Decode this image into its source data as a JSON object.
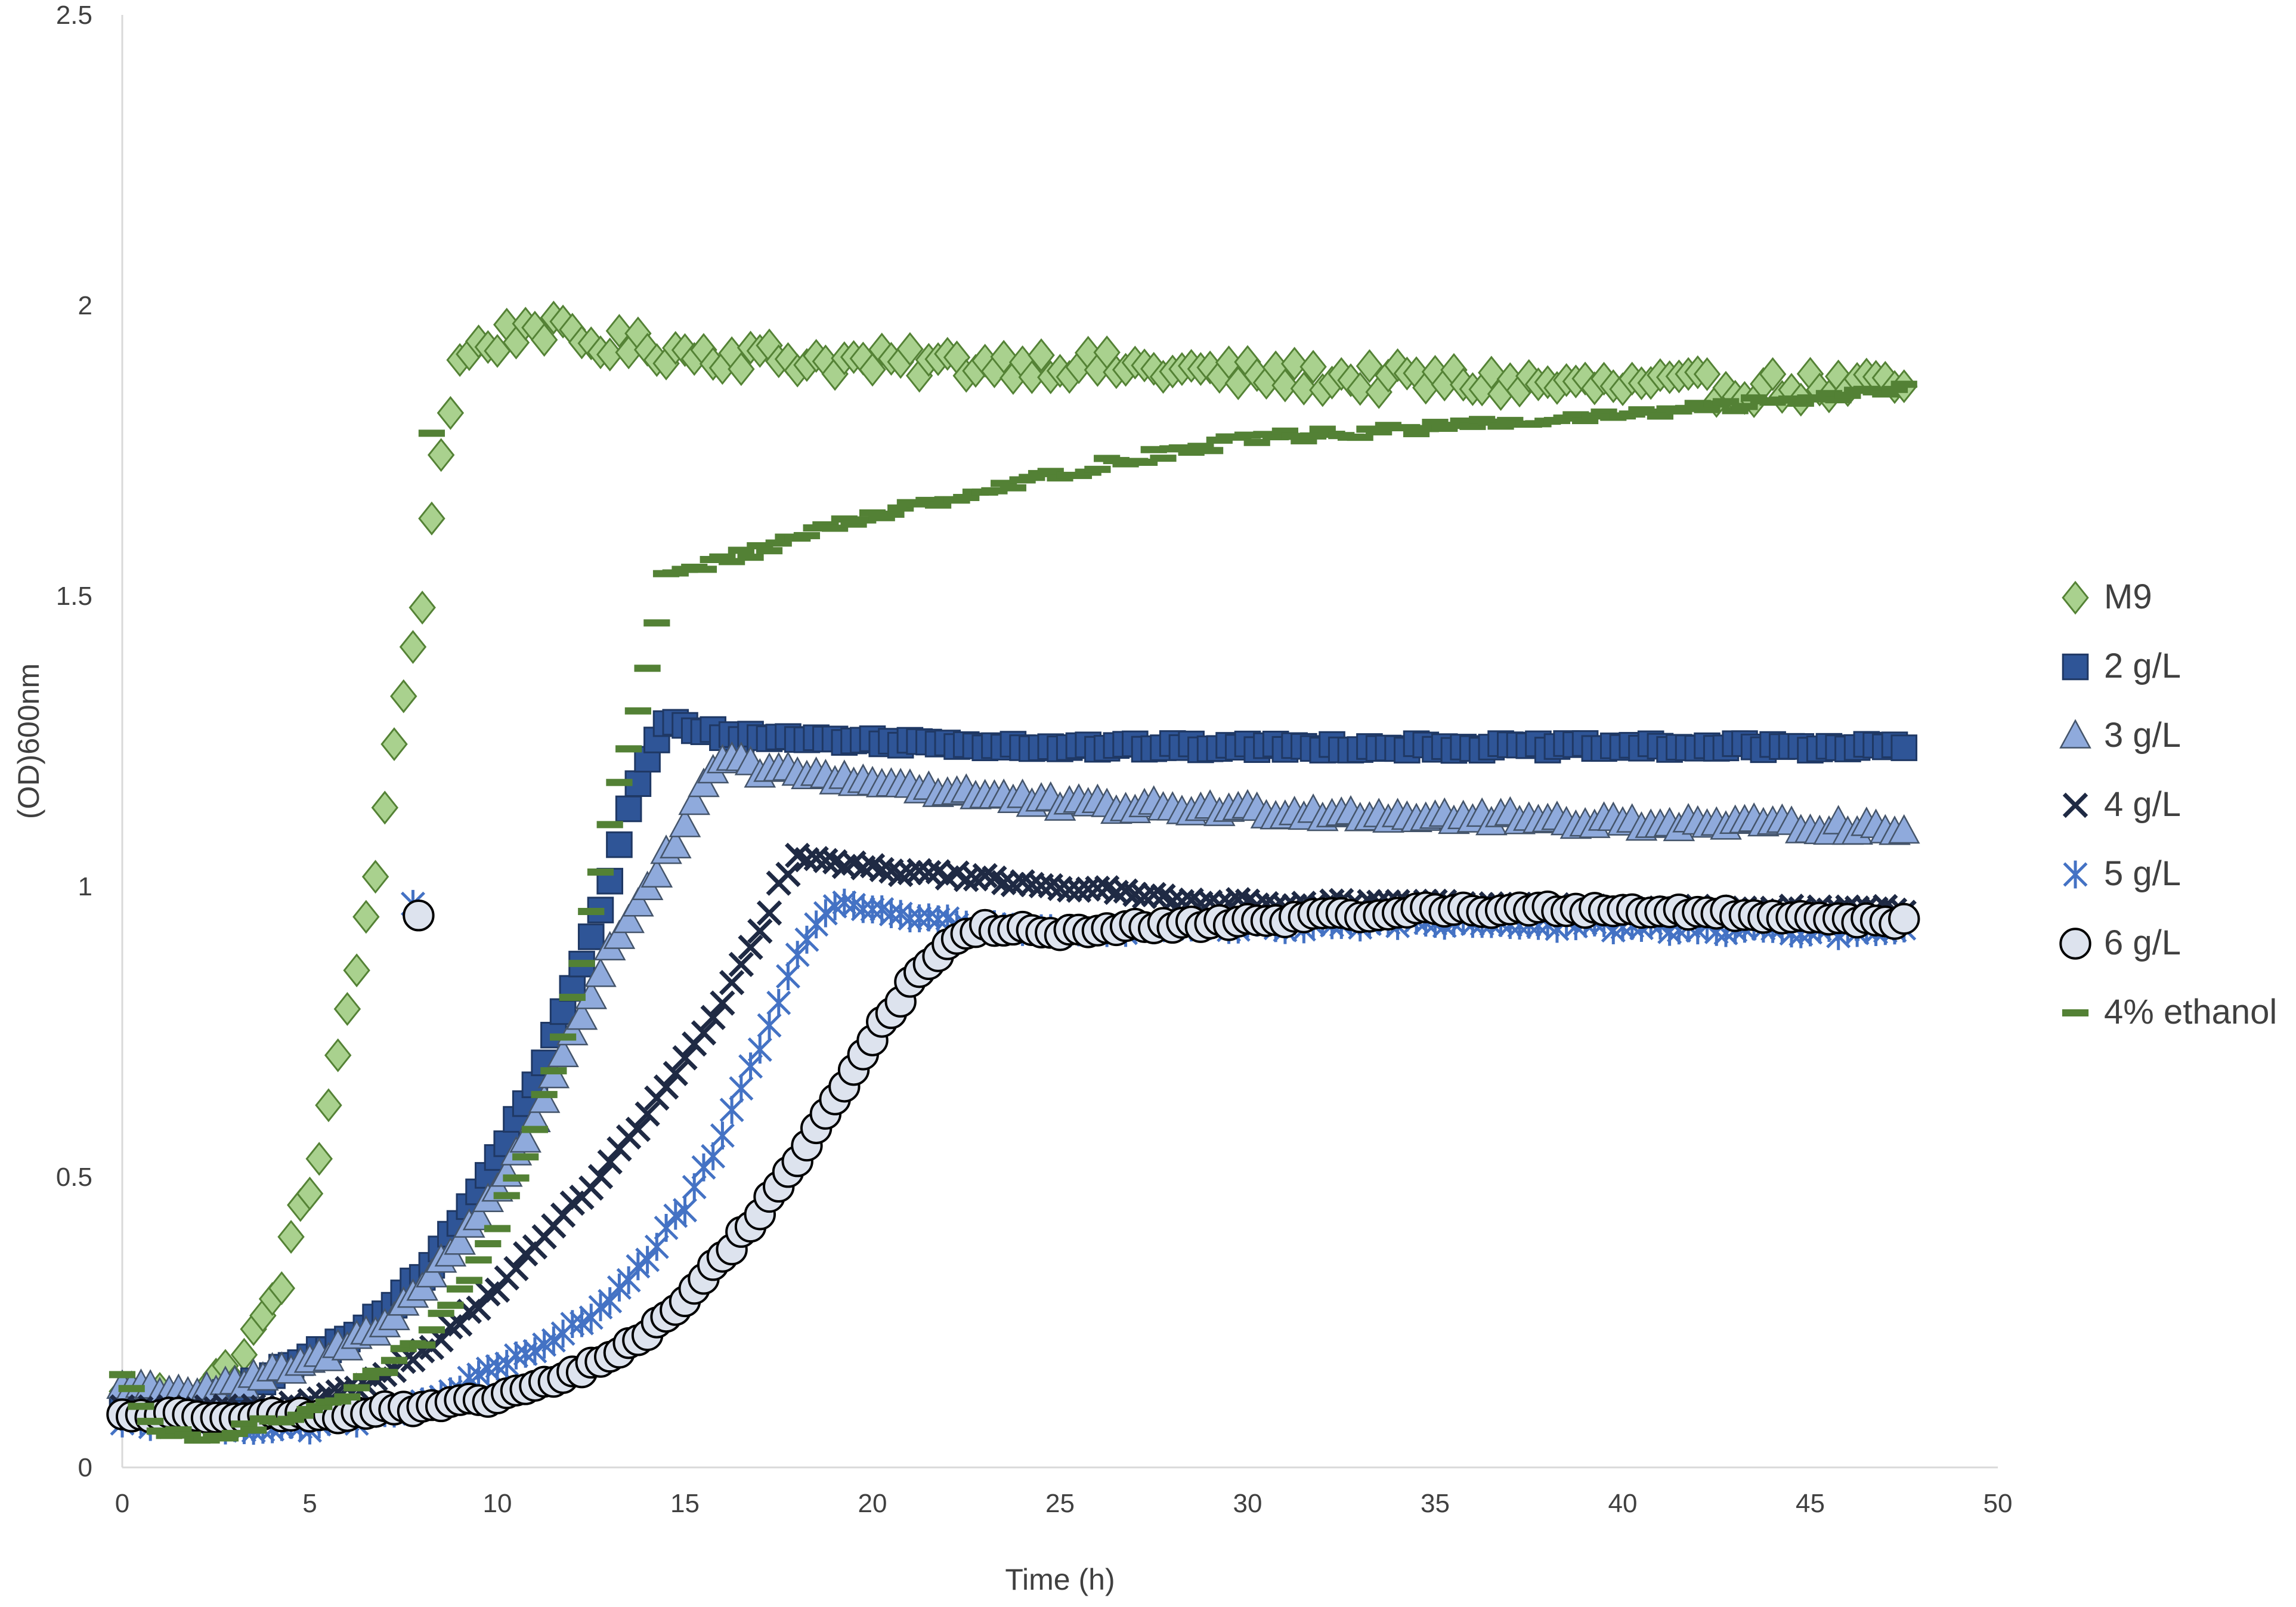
{
  "chart_data": {
    "type": "scatter",
    "title": "",
    "xlabel": "Time (h)",
    "ylabel": "(OD)600nm",
    "xlim": [
      0,
      50
    ],
    "ylim": [
      0,
      2.5
    ],
    "x_ticks": [
      "0",
      "5",
      "10",
      "15",
      "20",
      "25",
      "30",
      "35",
      "40",
      "45",
      "50"
    ],
    "y_ticks": [
      "0",
      "0.5",
      "1",
      "1.5",
      "2",
      "2.5"
    ],
    "grid": false,
    "legend_position": "right",
    "sample_interval_h": 0.25,
    "x_end": 47.5,
    "series": [
      {
        "name": "M9",
        "marker": "diamond",
        "color": "#a9d18e",
        "edge_color": "#548235",
        "keypoints": [
          [
            0,
            0.12
          ],
          [
            1,
            0.12
          ],
          [
            2,
            0.13
          ],
          [
            3,
            0.17
          ],
          [
            4,
            0.28
          ],
          [
            5,
            0.48
          ],
          [
            6,
            0.77
          ],
          [
            7,
            1.12
          ],
          [
            7.5,
            1.33
          ],
          [
            8,
            1.5
          ],
          [
            8.5,
            1.75
          ],
          [
            9,
            1.9
          ],
          [
            9.5,
            1.93
          ],
          [
            10,
            1.94
          ],
          [
            11,
            1.97
          ],
          [
            12,
            1.94
          ],
          [
            15,
            1.92
          ],
          [
            20,
            1.9
          ],
          [
            25,
            1.9
          ],
          [
            30,
            1.88
          ],
          [
            35,
            1.87
          ],
          [
            40,
            1.86
          ],
          [
            45,
            1.86
          ],
          [
            47.5,
            1.86
          ]
        ],
        "noise": 0.025
      },
      {
        "name": "2 g/L",
        "marker": "square",
        "color": "#2f5597",
        "edge_color": "#1f3864",
        "keypoints": [
          [
            0,
            0.11
          ],
          [
            2,
            0.11
          ],
          [
            3,
            0.13
          ],
          [
            4,
            0.16
          ],
          [
            5,
            0.19
          ],
          [
            6,
            0.22
          ],
          [
            7,
            0.27
          ],
          [
            8,
            0.33
          ],
          [
            9,
            0.42
          ],
          [
            10,
            0.53
          ],
          [
            11,
            0.66
          ],
          [
            12,
            0.82
          ],
          [
            13,
            1.01
          ],
          [
            13.5,
            1.13
          ],
          [
            14,
            1.22
          ],
          [
            14.5,
            1.28
          ],
          [
            15.5,
            1.27
          ],
          [
            16,
            1.26
          ],
          [
            20,
            1.25
          ],
          [
            25,
            1.24
          ],
          [
            30,
            1.24
          ],
          [
            40,
            1.24
          ],
          [
            47.5,
            1.24
          ]
        ],
        "noise": 0.006
      },
      {
        "name": "3 g/L",
        "marker": "triangle",
        "color": "#8faadc",
        "edge_color": "#44546a",
        "keypoints": [
          [
            0,
            0.14
          ],
          [
            2,
            0.13
          ],
          [
            3,
            0.14
          ],
          [
            4,
            0.16
          ],
          [
            5,
            0.18
          ],
          [
            6,
            0.21
          ],
          [
            7,
            0.25
          ],
          [
            8,
            0.31
          ],
          [
            9,
            0.39
          ],
          [
            10,
            0.48
          ],
          [
            11,
            0.6
          ],
          [
            12,
            0.74
          ],
          [
            13,
            0.89
          ],
          [
            14,
            1.0
          ],
          [
            15,
            1.1
          ],
          [
            15.5,
            1.17
          ],
          [
            16,
            1.22
          ],
          [
            17,
            1.2
          ],
          [
            20,
            1.18
          ],
          [
            25,
            1.14
          ],
          [
            30,
            1.13
          ],
          [
            35,
            1.12
          ],
          [
            40,
            1.11
          ],
          [
            47.5,
            1.1
          ]
        ],
        "noise": 0.01
      },
      {
        "name": "4 g/L",
        "marker": "x",
        "color": "#1f2a44",
        "edge_color": "#1f2a44",
        "keypoints": [
          [
            0,
            0.1
          ],
          [
            3,
            0.1
          ],
          [
            4,
            0.1
          ],
          [
            5,
            0.11
          ],
          [
            6,
            0.13
          ],
          [
            7,
            0.16
          ],
          [
            8,
            0.2
          ],
          [
            9,
            0.25
          ],
          [
            10,
            0.31
          ],
          [
            11,
            0.38
          ],
          [
            12,
            0.45
          ],
          [
            13,
            0.52
          ],
          [
            14,
            0.61
          ],
          [
            15,
            0.7
          ],
          [
            16,
            0.8
          ],
          [
            17,
            0.92
          ],
          [
            17.5,
            1.0
          ],
          [
            18,
            1.05
          ],
          [
            19,
            1.04
          ],
          [
            20,
            1.03
          ],
          [
            22,
            1.02
          ],
          [
            25,
            1.0
          ],
          [
            28,
            0.98
          ],
          [
            30,
            0.97
          ],
          [
            35,
            0.97
          ],
          [
            40,
            0.96
          ],
          [
            47.5,
            0.96
          ]
        ],
        "noise": 0.006
      },
      {
        "name": "5 g/L",
        "marker": "asterisk",
        "color": "#4472c4",
        "edge_color": "#4472c4",
        "keypoints": [
          [
            0,
            0.08
          ],
          [
            3,
            0.07
          ],
          [
            5,
            0.07
          ],
          [
            6,
            0.08
          ],
          [
            7,
            0.09
          ],
          [
            8,
            0.11
          ],
          [
            9,
            0.14
          ],
          [
            10,
            0.17
          ],
          [
            11,
            0.2
          ],
          [
            12,
            0.24
          ],
          [
            13,
            0.29
          ],
          [
            14,
            0.36
          ],
          [
            15,
            0.45
          ],
          [
            16,
            0.57
          ],
          [
            17,
            0.72
          ],
          [
            18,
            0.89
          ],
          [
            19,
            0.97
          ],
          [
            20,
            0.96
          ],
          [
            21,
            0.95
          ],
          [
            23,
            0.93
          ],
          [
            25,
            0.92
          ],
          [
            30,
            0.93
          ],
          [
            35,
            0.94
          ],
          [
            40,
            0.93
          ],
          [
            47.5,
            0.92
          ]
        ],
        "noise": 0.008,
        "outliers": [
          [
            7.75,
            0.97
          ]
        ]
      },
      {
        "name": "6 g/L",
        "marker": "circle",
        "color": "#dde3ee",
        "edge_color": "#000000",
        "keypoints": [
          [
            0,
            0.09
          ],
          [
            3,
            0.09
          ],
          [
            5,
            0.09
          ],
          [
            6,
            0.09
          ],
          [
            7,
            0.1
          ],
          [
            8,
            0.1
          ],
          [
            9,
            0.11
          ],
          [
            10,
            0.12
          ],
          [
            11,
            0.14
          ],
          [
            12,
            0.16
          ],
          [
            13,
            0.19
          ],
          [
            14,
            0.23
          ],
          [
            15,
            0.29
          ],
          [
            16,
            0.36
          ],
          [
            17,
            0.44
          ],
          [
            18,
            0.53
          ],
          [
            19,
            0.63
          ],
          [
            20,
            0.74
          ],
          [
            21,
            0.83
          ],
          [
            22,
            0.9
          ],
          [
            23,
            0.93
          ],
          [
            25,
            0.92
          ],
          [
            27,
            0.93
          ],
          [
            30,
            0.94
          ],
          [
            35,
            0.96
          ],
          [
            40,
            0.96
          ],
          [
            47.5,
            0.94
          ]
        ],
        "noise": 0.006,
        "outliers": [
          [
            7.9,
            0.95
          ]
        ]
      },
      {
        "name": "4% ethanol",
        "marker": "dash",
        "color": "#538135",
        "edge_color": "#538135",
        "keypoints": [
          [
            0,
            0.15
          ],
          [
            1,
            0.06
          ],
          [
            2,
            0.05
          ],
          [
            3,
            0.06
          ],
          [
            4,
            0.08
          ],
          [
            5,
            0.1
          ],
          [
            6,
            0.13
          ],
          [
            7,
            0.17
          ],
          [
            8,
            0.22
          ],
          [
            9,
            0.3
          ],
          [
            10,
            0.42
          ],
          [
            11,
            0.58
          ],
          [
            12,
            0.8
          ],
          [
            13,
            1.1
          ],
          [
            14,
            1.38
          ],
          [
            14.5,
            1.53
          ],
          [
            15,
            1.55
          ],
          [
            16,
            1.56
          ],
          [
            18,
            1.6
          ],
          [
            20,
            1.64
          ],
          [
            22,
            1.67
          ],
          [
            25,
            1.71
          ],
          [
            28,
            1.75
          ],
          [
            30,
            1.77
          ],
          [
            35,
            1.79
          ],
          [
            40,
            1.81
          ],
          [
            45,
            1.84
          ],
          [
            47.5,
            1.86
          ]
        ],
        "noise": 0.01,
        "outliers": [
          [
            8.25,
            1.78
          ]
        ]
      }
    ]
  }
}
